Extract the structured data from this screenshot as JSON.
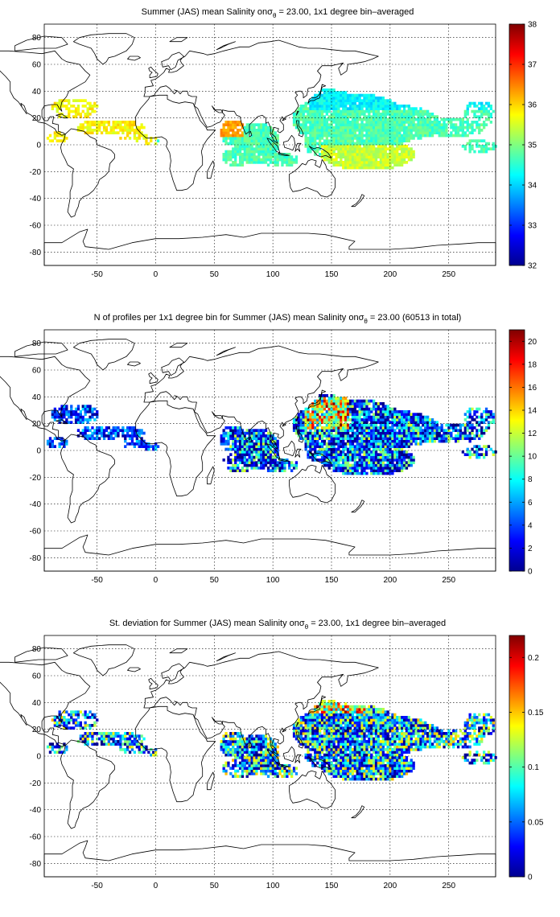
{
  "figure": {
    "panels": [
      {
        "id": "mean_salinity",
        "title_pre": "Summer (JAS) mean Salinity on",
        "title_sym": "σ",
        "title_sub": "θ",
        "title_post": " = 23.00, 1x1 degree bin–averaged",
        "colorbar": {
          "min": 32,
          "max": 38,
          "ticks": [
            "32",
            "33",
            "34",
            "35",
            "36",
            "37",
            "38"
          ]
        }
      },
      {
        "id": "n_profiles",
        "title_pre": "N of profiles per 1x1 degree bin for Summer (JAS) mean Salinity on",
        "title_sym": "σ",
        "title_sub": "θ",
        "title_post": " = 23.00 (60513 in total)",
        "colorbar": {
          "min": 0,
          "max": 21,
          "ticks": [
            "0",
            "2",
            "4",
            "6",
            "8",
            "10",
            "12",
            "14",
            "16",
            "18",
            "20"
          ]
        }
      },
      {
        "id": "std_salinity",
        "title_pre": "St. deviation for Summer (JAS) mean Salinity on",
        "title_sym": "σ",
        "title_sub": "θ",
        "title_post": " = 23.00, 1x1 degree bin–averaged",
        "colorbar": {
          "min": 0,
          "max": 0.22,
          "ticks": [
            "0",
            "0.05",
            "0.1",
            "0.15",
            "0.2"
          ]
        }
      }
    ],
    "map_axes": {
      "xlim": [
        -95,
        290
      ],
      "ylim": [
        -90,
        90
      ],
      "xticks": [
        "-50",
        "0",
        "50",
        "100",
        "150",
        "200",
        "250"
      ],
      "yticks": [
        "80",
        "60",
        "40",
        "20",
        "0",
        "-20",
        "-40",
        "-60",
        "-80"
      ],
      "grid": "dotted",
      "colormap": "jet"
    }
  }
}
